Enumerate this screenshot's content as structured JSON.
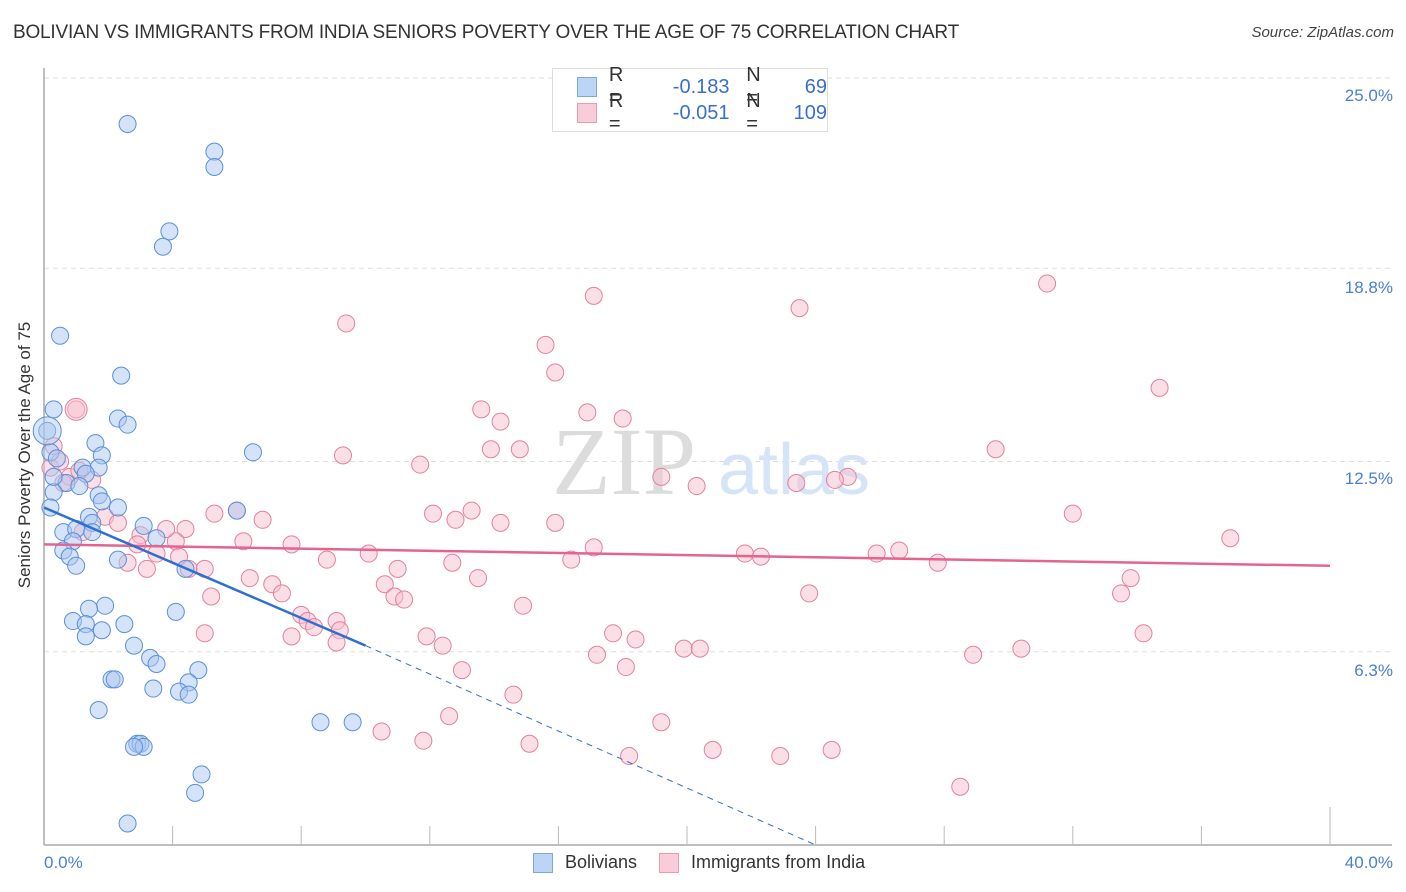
{
  "header": {
    "title": "BOLIVIAN VS IMMIGRANTS FROM INDIA SENIORS POVERTY OVER THE AGE OF 75 CORRELATION CHART",
    "source": "Source: ZipAtlas.com"
  },
  "colors": {
    "bolivians_fill": "#a9c8f0",
    "bolivians_stroke": "#5b8fdb",
    "bolivians_line": "#2f6fd1",
    "india_fill": "#f7bfd0",
    "india_stroke": "#e3809f",
    "india_line": "#e4638f",
    "tick_label": "#4a7fd4"
  },
  "stats_legend": {
    "rows": [
      {
        "r_label": "R =",
        "r_value": "-0.183",
        "n_label": "N =",
        "n_value": "69"
      },
      {
        "r_label": "R =",
        "r_value": "-0.051",
        "n_label": "N =",
        "n_value": "109"
      }
    ]
  },
  "watermark": {
    "zip": "ZIP",
    "atlas": "atlas"
  },
  "chart_data": {
    "type": "scatter",
    "title": "BOLIVIAN VS IMMIGRANTS FROM INDIA SENIORS POVERTY OVER THE AGE OF 75 CORRELATION CHART",
    "xlabel": "",
    "ylabel": "Seniors Poverty Over the Age of 75",
    "xlim": [
      0,
      40
    ],
    "ylim": [
      0,
      25
    ],
    "x_tick_labels": [
      "0.0%",
      "40.0%"
    ],
    "y_tick_labels": [
      "25.0%",
      "18.8%",
      "12.5%",
      "6.3%"
    ],
    "y_ticks": [
      25.0,
      18.8,
      12.5,
      6.3
    ],
    "grid": true,
    "legend_position": "bottom-center",
    "series": [
      {
        "name": "Bolivians",
        "r": -0.183,
        "n": 69,
        "trend": {
          "x0": 0,
          "y0": 11.0,
          "x1": 10.0,
          "y1": 6.5,
          "dashed_to_x": 24.0,
          "dashed_to_y": 0
        },
        "points": [
          [
            2.6,
            23.5
          ],
          [
            5.3,
            22.6
          ],
          [
            5.3,
            22.1
          ],
          [
            3.9,
            20.0
          ],
          [
            3.7,
            19.5
          ],
          [
            0.5,
            16.6
          ],
          [
            2.4,
            15.3
          ],
          [
            0.3,
            14.2
          ],
          [
            2.3,
            13.9
          ],
          [
            2.6,
            13.7
          ],
          [
            0.1,
            13.5
          ],
          [
            1.6,
            13.1
          ],
          [
            6.5,
            12.8
          ],
          [
            0.2,
            12.8
          ],
          [
            1.8,
            12.7
          ],
          [
            0.4,
            12.6
          ],
          [
            1.2,
            12.3
          ],
          [
            1.7,
            12.3
          ],
          [
            1.3,
            12.1
          ],
          [
            0.7,
            11.8
          ],
          [
            1.1,
            11.7
          ],
          [
            0.3,
            11.5
          ],
          [
            1.7,
            11.4
          ],
          [
            1.8,
            11.2
          ],
          [
            2.3,
            11.0
          ],
          [
            0.2,
            11.0
          ],
          [
            6.0,
            10.9
          ],
          [
            1.4,
            10.7
          ],
          [
            1.5,
            10.5
          ],
          [
            3.1,
            10.4
          ],
          [
            0.6,
            10.2
          ],
          [
            1.0,
            10.3
          ],
          [
            1.5,
            10.2
          ],
          [
            0.9,
            9.9
          ],
          [
            3.5,
            10.0
          ],
          [
            0.6,
            9.6
          ],
          [
            0.8,
            9.4
          ],
          [
            2.3,
            9.3
          ],
          [
            4.4,
            9.0
          ],
          [
            1.0,
            9.1
          ],
          [
            1.9,
            7.8
          ],
          [
            1.4,
            7.7
          ],
          [
            4.1,
            7.6
          ],
          [
            0.9,
            7.3
          ],
          [
            1.3,
            7.2
          ],
          [
            2.5,
            7.2
          ],
          [
            1.8,
            7.0
          ],
          [
            1.3,
            6.8
          ],
          [
            2.8,
            6.5
          ],
          [
            3.3,
            6.1
          ],
          [
            3.5,
            5.9
          ],
          [
            4.8,
            5.7
          ],
          [
            2.1,
            5.4
          ],
          [
            2.2,
            5.4
          ],
          [
            4.5,
            5.3
          ],
          [
            3.4,
            5.1
          ],
          [
            4.2,
            5.0
          ],
          [
            4.5,
            4.9
          ],
          [
            1.7,
            4.4
          ],
          [
            8.6,
            4.0
          ],
          [
            9.6,
            4.0
          ],
          [
            2.9,
            3.3
          ],
          [
            3.0,
            3.3
          ],
          [
            3.1,
            3.2
          ],
          [
            2.8,
            3.2
          ],
          [
            4.9,
            2.3
          ],
          [
            4.7,
            1.7
          ],
          [
            2.6,
            0.7
          ],
          [
            0.3,
            12.0
          ]
        ]
      },
      {
        "name": "Immigrants from India",
        "r": -0.051,
        "n": 109,
        "trend": {
          "x0": 0,
          "y0": 9.8,
          "x1": 40,
          "y1": 9.1
        },
        "points": [
          [
            31.2,
            18.3
          ],
          [
            17.1,
            17.9
          ],
          [
            23.5,
            17.5
          ],
          [
            9.4,
            17.0
          ],
          [
            15.6,
            16.3
          ],
          [
            15.9,
            15.4
          ],
          [
            34.7,
            14.9
          ],
          [
            1.0,
            14.2
          ],
          [
            13.6,
            14.2
          ],
          [
            14.2,
            13.8
          ],
          [
            16.9,
            14.1
          ],
          [
            18.0,
            13.9
          ],
          [
            13.9,
            12.9
          ],
          [
            14.8,
            12.9
          ],
          [
            29.6,
            12.9
          ],
          [
            9.3,
            12.7
          ],
          [
            11.7,
            12.4
          ],
          [
            19.2,
            12.0
          ],
          [
            25.0,
            12.0
          ],
          [
            20.3,
            11.7
          ],
          [
            23.4,
            11.8
          ],
          [
            24.6,
            11.9
          ],
          [
            32.0,
            10.8
          ],
          [
            12.1,
            10.8
          ],
          [
            12.8,
            10.6
          ],
          [
            13.3,
            10.9
          ],
          [
            14.2,
            10.5
          ],
          [
            15.9,
            10.5
          ],
          [
            17.1,
            9.7
          ],
          [
            16.4,
            9.3
          ],
          [
            26.6,
            9.6
          ],
          [
            27.8,
            9.2
          ],
          [
            36.9,
            10.0
          ],
          [
            0.3,
            13.0
          ],
          [
            0.2,
            12.3
          ],
          [
            0.8,
            12.0
          ],
          [
            1.5,
            11.9
          ],
          [
            1.1,
            12.2
          ],
          [
            0.6,
            11.8
          ],
          [
            1.9,
            10.7
          ],
          [
            2.3,
            10.5
          ],
          [
            4.4,
            10.3
          ],
          [
            5.3,
            10.8
          ],
          [
            6.0,
            10.9
          ],
          [
            6.8,
            10.6
          ],
          [
            3.0,
            10.1
          ],
          [
            4.1,
            9.9
          ],
          [
            2.9,
            9.8
          ],
          [
            6.2,
            9.9
          ],
          [
            7.7,
            9.8
          ],
          [
            3.5,
            9.5
          ],
          [
            4.2,
            9.4
          ],
          [
            2.6,
            9.2
          ],
          [
            3.2,
            9.0
          ],
          [
            4.5,
            9.0
          ],
          [
            5.0,
            9.0
          ],
          [
            8.8,
            9.3
          ],
          [
            10.1,
            9.5
          ],
          [
            11.0,
            9.0
          ],
          [
            10.6,
            8.5
          ],
          [
            12.7,
            9.2
          ],
          [
            13.5,
            8.7
          ],
          [
            6.4,
            8.7
          ],
          [
            7.1,
            8.5
          ],
          [
            7.4,
            8.2
          ],
          [
            5.2,
            8.1
          ],
          [
            10.9,
            8.1
          ],
          [
            11.2,
            8.0
          ],
          [
            14.9,
            7.8
          ],
          [
            8.0,
            7.5
          ],
          [
            8.2,
            7.3
          ],
          [
            8.4,
            7.1
          ],
          [
            9.1,
            7.3
          ],
          [
            9.2,
            7.0
          ],
          [
            7.7,
            6.8
          ],
          [
            5.0,
            6.9
          ],
          [
            9.1,
            6.6
          ],
          [
            11.9,
            6.8
          ],
          [
            12.4,
            6.5
          ],
          [
            17.7,
            6.9
          ],
          [
            17.2,
            6.2
          ],
          [
            18.4,
            6.7
          ],
          [
            23.8,
            8.2
          ],
          [
            33.8,
            8.7
          ],
          [
            33.5,
            8.2
          ],
          [
            34.2,
            6.9
          ],
          [
            28.9,
            6.2
          ],
          [
            30.4,
            6.4
          ],
          [
            19.9,
            6.4
          ],
          [
            20.4,
            6.4
          ],
          [
            13.0,
            5.7
          ],
          [
            18.1,
            5.8
          ],
          [
            14.6,
            4.9
          ],
          [
            12.6,
            4.2
          ],
          [
            19.2,
            4.0
          ],
          [
            11.8,
            3.4
          ],
          [
            15.1,
            3.3
          ],
          [
            18.2,
            2.9
          ],
          [
            20.8,
            3.1
          ],
          [
            22.9,
            2.9
          ],
          [
            24.5,
            3.1
          ],
          [
            28.5,
            1.9
          ],
          [
            10.5,
            3.7
          ],
          [
            21.8,
            9.5
          ],
          [
            22.3,
            9.4
          ],
          [
            25.9,
            9.5
          ],
          [
            1.2,
            10.2
          ],
          [
            0.5,
            12.5
          ],
          [
            3.8,
            10.3
          ]
        ]
      }
    ]
  },
  "axes": {
    "y_label": "Seniors Poverty Over the Age of 75",
    "y_ticks": [
      {
        "label": "25.0%",
        "value": 25.0
      },
      {
        "label": "18.8%",
        "value": 18.8
      },
      {
        "label": "12.5%",
        "value": 12.5
      },
      {
        "label": "6.3%",
        "value": 6.3
      }
    ],
    "x_min_label": "0.0%",
    "x_max_label": "40.0%"
  },
  "bottom_legend": {
    "items": [
      {
        "label": "Bolivians"
      },
      {
        "label": "Immigrants from India"
      }
    ]
  }
}
